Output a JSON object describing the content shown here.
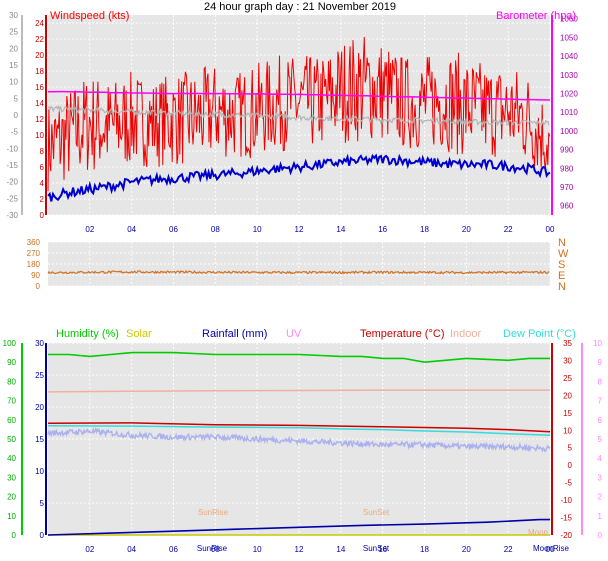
{
  "title": "24 hour graph day : 21 November 2019",
  "colors": {
    "windspeed": "#ff0000",
    "gust": "#ee0000",
    "barometer": "#ff00ff",
    "grey_series": "#b4b4b4",
    "blue_series": "#0000cc",
    "direction": "#d07020",
    "humidity": "#00cc00",
    "solar": "#c8c800",
    "rainfall": "#0000aa",
    "uv": "#ff88ff",
    "temperature": "#cc0000",
    "indoor": "#f0b0a0",
    "dew_point": "#33dddd",
    "lavender": "#aab0f0",
    "plot_bg": "#e6e6e6"
  },
  "x_ticks": [
    "02",
    "04",
    "06",
    "08",
    "10",
    "12",
    "14",
    "16",
    "18",
    "20",
    "22",
    "00"
  ],
  "chart_data": [
    {
      "type": "line",
      "legend_left": "Windspeed (kts)",
      "legend_right": "Barometer (hpa)",
      "y_left": {
        "ticks": [
          "30",
          "25",
          "20",
          "15",
          "10",
          "5",
          "0",
          "-5",
          "-10",
          "-15",
          "-20",
          "-25",
          "-30"
        ],
        "ylim": [
          -30,
          30
        ]
      },
      "y_inner": {
        "ticks": [
          "24",
          "22",
          "20",
          "18",
          "16",
          "14",
          "12",
          "10",
          "8",
          "6",
          "4",
          "2",
          "0"
        ],
        "ylim": [
          0,
          25
        ]
      },
      "y_right": {
        "ticks": [
          "1060",
          "1050",
          "1040",
          "1030",
          "1020",
          "1010",
          "1000",
          "990",
          "980",
          "970",
          "960"
        ],
        "ylim": [
          955,
          1062
        ]
      },
      "series": [
        {
          "key": "windspeed",
          "axis": "inner",
          "x": [
            0,
            1,
            2,
            3,
            4,
            5,
            6,
            7,
            8,
            9,
            10,
            11,
            12,
            13,
            14,
            15,
            16,
            17,
            18,
            19,
            20,
            21,
            22,
            23,
            24
          ],
          "y": [
            7,
            8,
            9,
            9,
            10,
            10,
            10,
            10,
            11,
            11,
            11,
            12,
            12,
            12,
            13,
            13,
            13,
            12,
            12,
            12,
            11,
            11,
            11,
            10,
            8
          ]
        },
        {
          "key": "gust",
          "axis": "inner",
          "x": [
            0,
            1,
            2,
            3,
            4,
            5,
            6,
            7,
            8,
            9,
            10,
            11,
            12,
            13,
            14,
            15,
            16,
            17,
            18,
            19,
            20,
            21,
            22,
            23,
            24
          ],
          "y": [
            12,
            14,
            16,
            15,
            16,
            15,
            16,
            16,
            17,
            16,
            17,
            18,
            18,
            18,
            20,
            21,
            20,
            18,
            18,
            19,
            18,
            17,
            17,
            16,
            12
          ]
        },
        {
          "key": "blue_series",
          "axis": "inner",
          "x": [
            0,
            1,
            2,
            3,
            4,
            5,
            6,
            7,
            8,
            9,
            10,
            11,
            12,
            13,
            14,
            15,
            16,
            17,
            18,
            19,
            20,
            21,
            22,
            23,
            24
          ],
          "y": [
            2.2,
            2.8,
            3.2,
            3.6,
            4.1,
            4.4,
            4.6,
            4.8,
            5.0,
            5.2,
            5.5,
            5.8,
            6.0,
            6.3,
            6.6,
            6.8,
            7.0,
            6.8,
            6.6,
            6.4,
            6.3,
            6.3,
            6.1,
            5.8,
            5.2
          ]
        },
        {
          "key": "grey_series",
          "axis": "inner",
          "x": [
            0,
            3,
            6,
            9,
            12,
            15,
            18,
            21,
            24
          ],
          "y": [
            13.3,
            13.0,
            12.7,
            12.5,
            12.2,
            12.0,
            11.8,
            11.6,
            11.5
          ]
        },
        {
          "key": "barometer",
          "axis": "right",
          "x": [
            0,
            1,
            3,
            6,
            8,
            12,
            14,
            16,
            18,
            20,
            22,
            24
          ],
          "y": [
            1021,
            1021,
            1020.5,
            1020,
            1020,
            1019.5,
            1019,
            1018.5,
            1018,
            1017.5,
            1017,
            1016.5
          ]
        }
      ]
    },
    {
      "type": "line",
      "y_left": {
        "ticks": [
          "360",
          "270",
          "180",
          "90",
          "0"
        ],
        "ylim": [
          0,
          360
        ]
      },
      "y_right_labels": [
        "N",
        "W",
        "S",
        "E",
        "N"
      ],
      "series": [
        {
          "key": "direction",
          "x": [
            0,
            4,
            8,
            12,
            16,
            20,
            24
          ],
          "y": [
            110,
            115,
            112,
            110,
            112,
            110,
            112
          ]
        }
      ]
    },
    {
      "type": "line",
      "legend": [
        {
          "key": "humidity",
          "label": "Humidity  (%)"
        },
        {
          "key": "solar",
          "label": "Solar"
        },
        {
          "key": "rainfall",
          "label": "Rainfall (mm)"
        },
        {
          "key": "uv",
          "label": "UV"
        },
        {
          "key": "temperature",
          "label": "Temperature  (°C)"
        },
        {
          "key": "indoor",
          "label": "Indoor"
        },
        {
          "key": "dew_point",
          "label": "Dew Point (°C)"
        }
      ],
      "y_outer_left": {
        "ticks": [
          "100",
          "90",
          "80",
          "70",
          "60",
          "50",
          "40",
          "30",
          "20",
          "10",
          "0"
        ],
        "ylim": [
          0,
          100
        ]
      },
      "y_inner_left": {
        "ticks": [
          "30",
          "25",
          "20",
          "15",
          "10",
          "5",
          "0"
        ],
        "ylim": [
          0,
          30
        ]
      },
      "y_inner_right": {
        "ticks": [
          "35",
          "30",
          "25",
          "20",
          "15",
          "10",
          "5",
          "0",
          "-5",
          "-10",
          "-15",
          "-20"
        ],
        "ylim": [
          -20,
          35
        ]
      },
      "y_outer_right": {
        "ticks": [
          "10",
          "9",
          "8",
          "7",
          "6",
          "5",
          "4",
          "3",
          "2",
          "1",
          "0"
        ],
        "ylim": [
          0,
          10
        ]
      },
      "annotations": [
        "SunRise",
        "SunSet",
        "Moon",
        "SunRise",
        "SunSet",
        "MoonRise"
      ],
      "series": [
        {
          "key": "humidity",
          "axis": "outer_left",
          "x": [
            0,
            1,
            2,
            3,
            4,
            6,
            8,
            10,
            12,
            14,
            15,
            16,
            17,
            18,
            19,
            20,
            22,
            23,
            24
          ],
          "y": [
            94,
            94,
            93,
            94,
            95,
            95,
            94,
            94,
            94,
            93,
            93,
            92,
            92,
            90,
            91,
            92,
            91,
            92,
            92
          ]
        },
        {
          "key": "temperature",
          "axis": "inner_right",
          "x": [
            0,
            4,
            8,
            12,
            14,
            16,
            18,
            20,
            22,
            24
          ],
          "y": [
            12.0,
            12.1,
            11.6,
            11.4,
            11.2,
            11.0,
            10.8,
            10.6,
            10.2,
            9.6
          ]
        },
        {
          "key": "dew_point",
          "axis": "inner_right",
          "x": [
            0,
            4,
            8,
            12,
            14,
            16,
            18,
            20,
            22,
            24
          ],
          "y": [
            11.3,
            11.2,
            10.9,
            10.7,
            10.4,
            10.2,
            9.8,
            9.5,
            9.0,
            8.6
          ]
        },
        {
          "key": "indoor",
          "axis": "inner_right",
          "x": [
            0,
            4,
            8,
            12,
            16,
            20,
            24
          ],
          "y": [
            21.0,
            21.2,
            21.3,
            21.4,
            21.5,
            21.5,
            21.5
          ]
        },
        {
          "key": "lavender",
          "axis": "outer_left",
          "x": [
            0,
            2,
            4,
            6,
            8,
            10,
            12,
            14,
            16,
            18,
            20,
            22,
            24
          ],
          "y": [
            53,
            54,
            52,
            51,
            51,
            50,
            49,
            48,
            47,
            47,
            46,
            46,
            45
          ]
        },
        {
          "key": "rainfall",
          "axis": "inner_left",
          "x": [
            0,
            3,
            6,
            9,
            12,
            15,
            18,
            21,
            23.5,
            24
          ],
          "y": [
            0,
            0.3,
            0.6,
            0.9,
            1.2,
            1.5,
            1.7,
            2.0,
            2.4,
            2.4
          ]
        },
        {
          "key": "solar",
          "axis": "outer_left",
          "x": [
            0,
            24
          ],
          "y": [
            0,
            0
          ]
        }
      ]
    }
  ]
}
